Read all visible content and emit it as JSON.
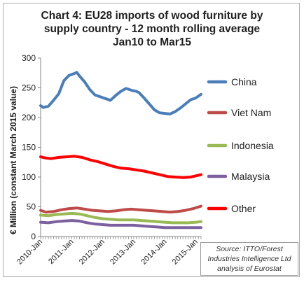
{
  "chart_data": {
    "type": "line",
    "title_lines": [
      "Chart 4: EU28 imports of wood furniture by",
      "supply country - 12 month rolling average",
      "Jan10 to Mar15"
    ],
    "ylabel": "€ Million (constant March 2015 value)",
    "xlabel": "",
    "ylim": [
      0,
      300
    ],
    "yticks": [
      0,
      50,
      100,
      150,
      200,
      250,
      300
    ],
    "xlim": [
      "2010-01",
      "2015-03"
    ],
    "xtick_labels": [
      "2010-Jan",
      "2011-Jan",
      "2012-Jan",
      "2013-Jan",
      "2014-Jan",
      "2015-Jan"
    ],
    "xtick_dates": [
      "2010-01",
      "2011-01",
      "2012-01",
      "2013-01",
      "2014-01",
      "2015-01"
    ],
    "legend_position": "right",
    "grid": false,
    "source": "Source: ITTO/Forest Industries Intelligence Ltd analysis of Eurostat",
    "series": [
      {
        "name": "China",
        "color": "#4a7ebb",
        "points": [
          [
            "2010-01",
            220
          ],
          [
            "2010-02",
            217
          ],
          [
            "2010-04",
            219
          ],
          [
            "2010-06",
            229
          ],
          [
            "2010-08",
            240
          ],
          [
            "2010-10",
            262
          ],
          [
            "2010-12",
            271
          ],
          [
            "2011-02",
            274
          ],
          [
            "2011-03",
            276
          ],
          [
            "2011-04",
            270
          ],
          [
            "2011-06",
            260
          ],
          [
            "2011-08",
            247
          ],
          [
            "2011-10",
            238
          ],
          [
            "2011-12",
            235
          ],
          [
            "2012-02",
            232
          ],
          [
            "2012-04",
            229
          ],
          [
            "2012-06",
            237
          ],
          [
            "2012-08",
            244
          ],
          [
            "2012-10",
            249
          ],
          [
            "2012-12",
            246
          ],
          [
            "2013-02",
            244
          ],
          [
            "2013-03",
            242
          ],
          [
            "2013-05",
            233
          ],
          [
            "2013-07",
            223
          ],
          [
            "2013-09",
            213
          ],
          [
            "2013-11",
            208
          ],
          [
            "2014-01",
            207
          ],
          [
            "2014-03",
            206
          ],
          [
            "2014-05",
            210
          ],
          [
            "2014-07",
            216
          ],
          [
            "2014-09",
            223
          ],
          [
            "2014-11",
            230
          ],
          [
            "2015-01",
            233
          ],
          [
            "2015-03",
            239
          ]
        ]
      },
      {
        "name": "Viet Nam",
        "color": "#be4b48",
        "points": [
          [
            "2010-01",
            44
          ],
          [
            "2010-03",
            41
          ],
          [
            "2010-06",
            42
          ],
          [
            "2010-09",
            45
          ],
          [
            "2010-12",
            47
          ],
          [
            "2011-03",
            48
          ],
          [
            "2011-06",
            46
          ],
          [
            "2011-09",
            44
          ],
          [
            "2011-12",
            43
          ],
          [
            "2012-03",
            42
          ],
          [
            "2012-06",
            43
          ],
          [
            "2012-09",
            45
          ],
          [
            "2012-12",
            46
          ],
          [
            "2013-03",
            45
          ],
          [
            "2013-06",
            44
          ],
          [
            "2013-09",
            43
          ],
          [
            "2013-12",
            42
          ],
          [
            "2014-03",
            41
          ],
          [
            "2014-06",
            42
          ],
          [
            "2014-09",
            44
          ],
          [
            "2014-12",
            47
          ],
          [
            "2015-03",
            51
          ]
        ]
      },
      {
        "name": "Indonesia",
        "color": "#98b954",
        "points": [
          [
            "2010-01",
            36
          ],
          [
            "2010-04",
            35
          ],
          [
            "2010-07",
            37
          ],
          [
            "2010-10",
            38
          ],
          [
            "2011-01",
            39
          ],
          [
            "2011-04",
            38
          ],
          [
            "2011-07",
            35
          ],
          [
            "2011-10",
            32
          ],
          [
            "2012-01",
            30
          ],
          [
            "2012-04",
            29
          ],
          [
            "2012-07",
            28
          ],
          [
            "2012-10",
            28
          ],
          [
            "2013-01",
            28
          ],
          [
            "2013-04",
            27
          ],
          [
            "2013-07",
            26
          ],
          [
            "2013-10",
            25
          ],
          [
            "2014-01",
            24
          ],
          [
            "2014-04",
            23
          ],
          [
            "2014-07",
            23
          ],
          [
            "2014-10",
            23
          ],
          [
            "2015-01",
            24
          ],
          [
            "2015-03",
            25
          ]
        ]
      },
      {
        "name": "Malaysia",
        "color": "#7d60a0",
        "points": [
          [
            "2010-01",
            24
          ],
          [
            "2010-04",
            23
          ],
          [
            "2010-07",
            25
          ],
          [
            "2010-10",
            26
          ],
          [
            "2011-01",
            27
          ],
          [
            "2011-04",
            26
          ],
          [
            "2011-07",
            23
          ],
          [
            "2011-10",
            21
          ],
          [
            "2012-01",
            20
          ],
          [
            "2012-04",
            19
          ],
          [
            "2012-07",
            19
          ],
          [
            "2012-10",
            19
          ],
          [
            "2013-01",
            19
          ],
          [
            "2013-04",
            18
          ],
          [
            "2013-07",
            17
          ],
          [
            "2013-10",
            16
          ],
          [
            "2014-01",
            15
          ],
          [
            "2014-04",
            15
          ],
          [
            "2014-07",
            15
          ],
          [
            "2014-10",
            15
          ],
          [
            "2015-01",
            15
          ],
          [
            "2015-03",
            15
          ]
        ]
      },
      {
        "name": "Other",
        "color": "#ff0000",
        "points": [
          [
            "2010-01",
            134
          ],
          [
            "2010-03",
            132
          ],
          [
            "2010-05",
            131
          ],
          [
            "2010-08",
            133
          ],
          [
            "2010-11",
            134
          ],
          [
            "2011-02",
            135
          ],
          [
            "2011-05",
            133
          ],
          [
            "2011-08",
            129
          ],
          [
            "2011-11",
            126
          ],
          [
            "2012-02",
            122
          ],
          [
            "2012-05",
            118
          ],
          [
            "2012-08",
            115
          ],
          [
            "2012-11",
            114
          ],
          [
            "2013-02",
            112
          ],
          [
            "2013-05",
            110
          ],
          [
            "2013-08",
            107
          ],
          [
            "2013-11",
            104
          ],
          [
            "2014-02",
            101
          ],
          [
            "2014-05",
            100
          ],
          [
            "2014-08",
            99
          ],
          [
            "2014-11",
            100
          ],
          [
            "2015-01",
            102
          ],
          [
            "2015-03",
            104
          ]
        ]
      }
    ]
  }
}
